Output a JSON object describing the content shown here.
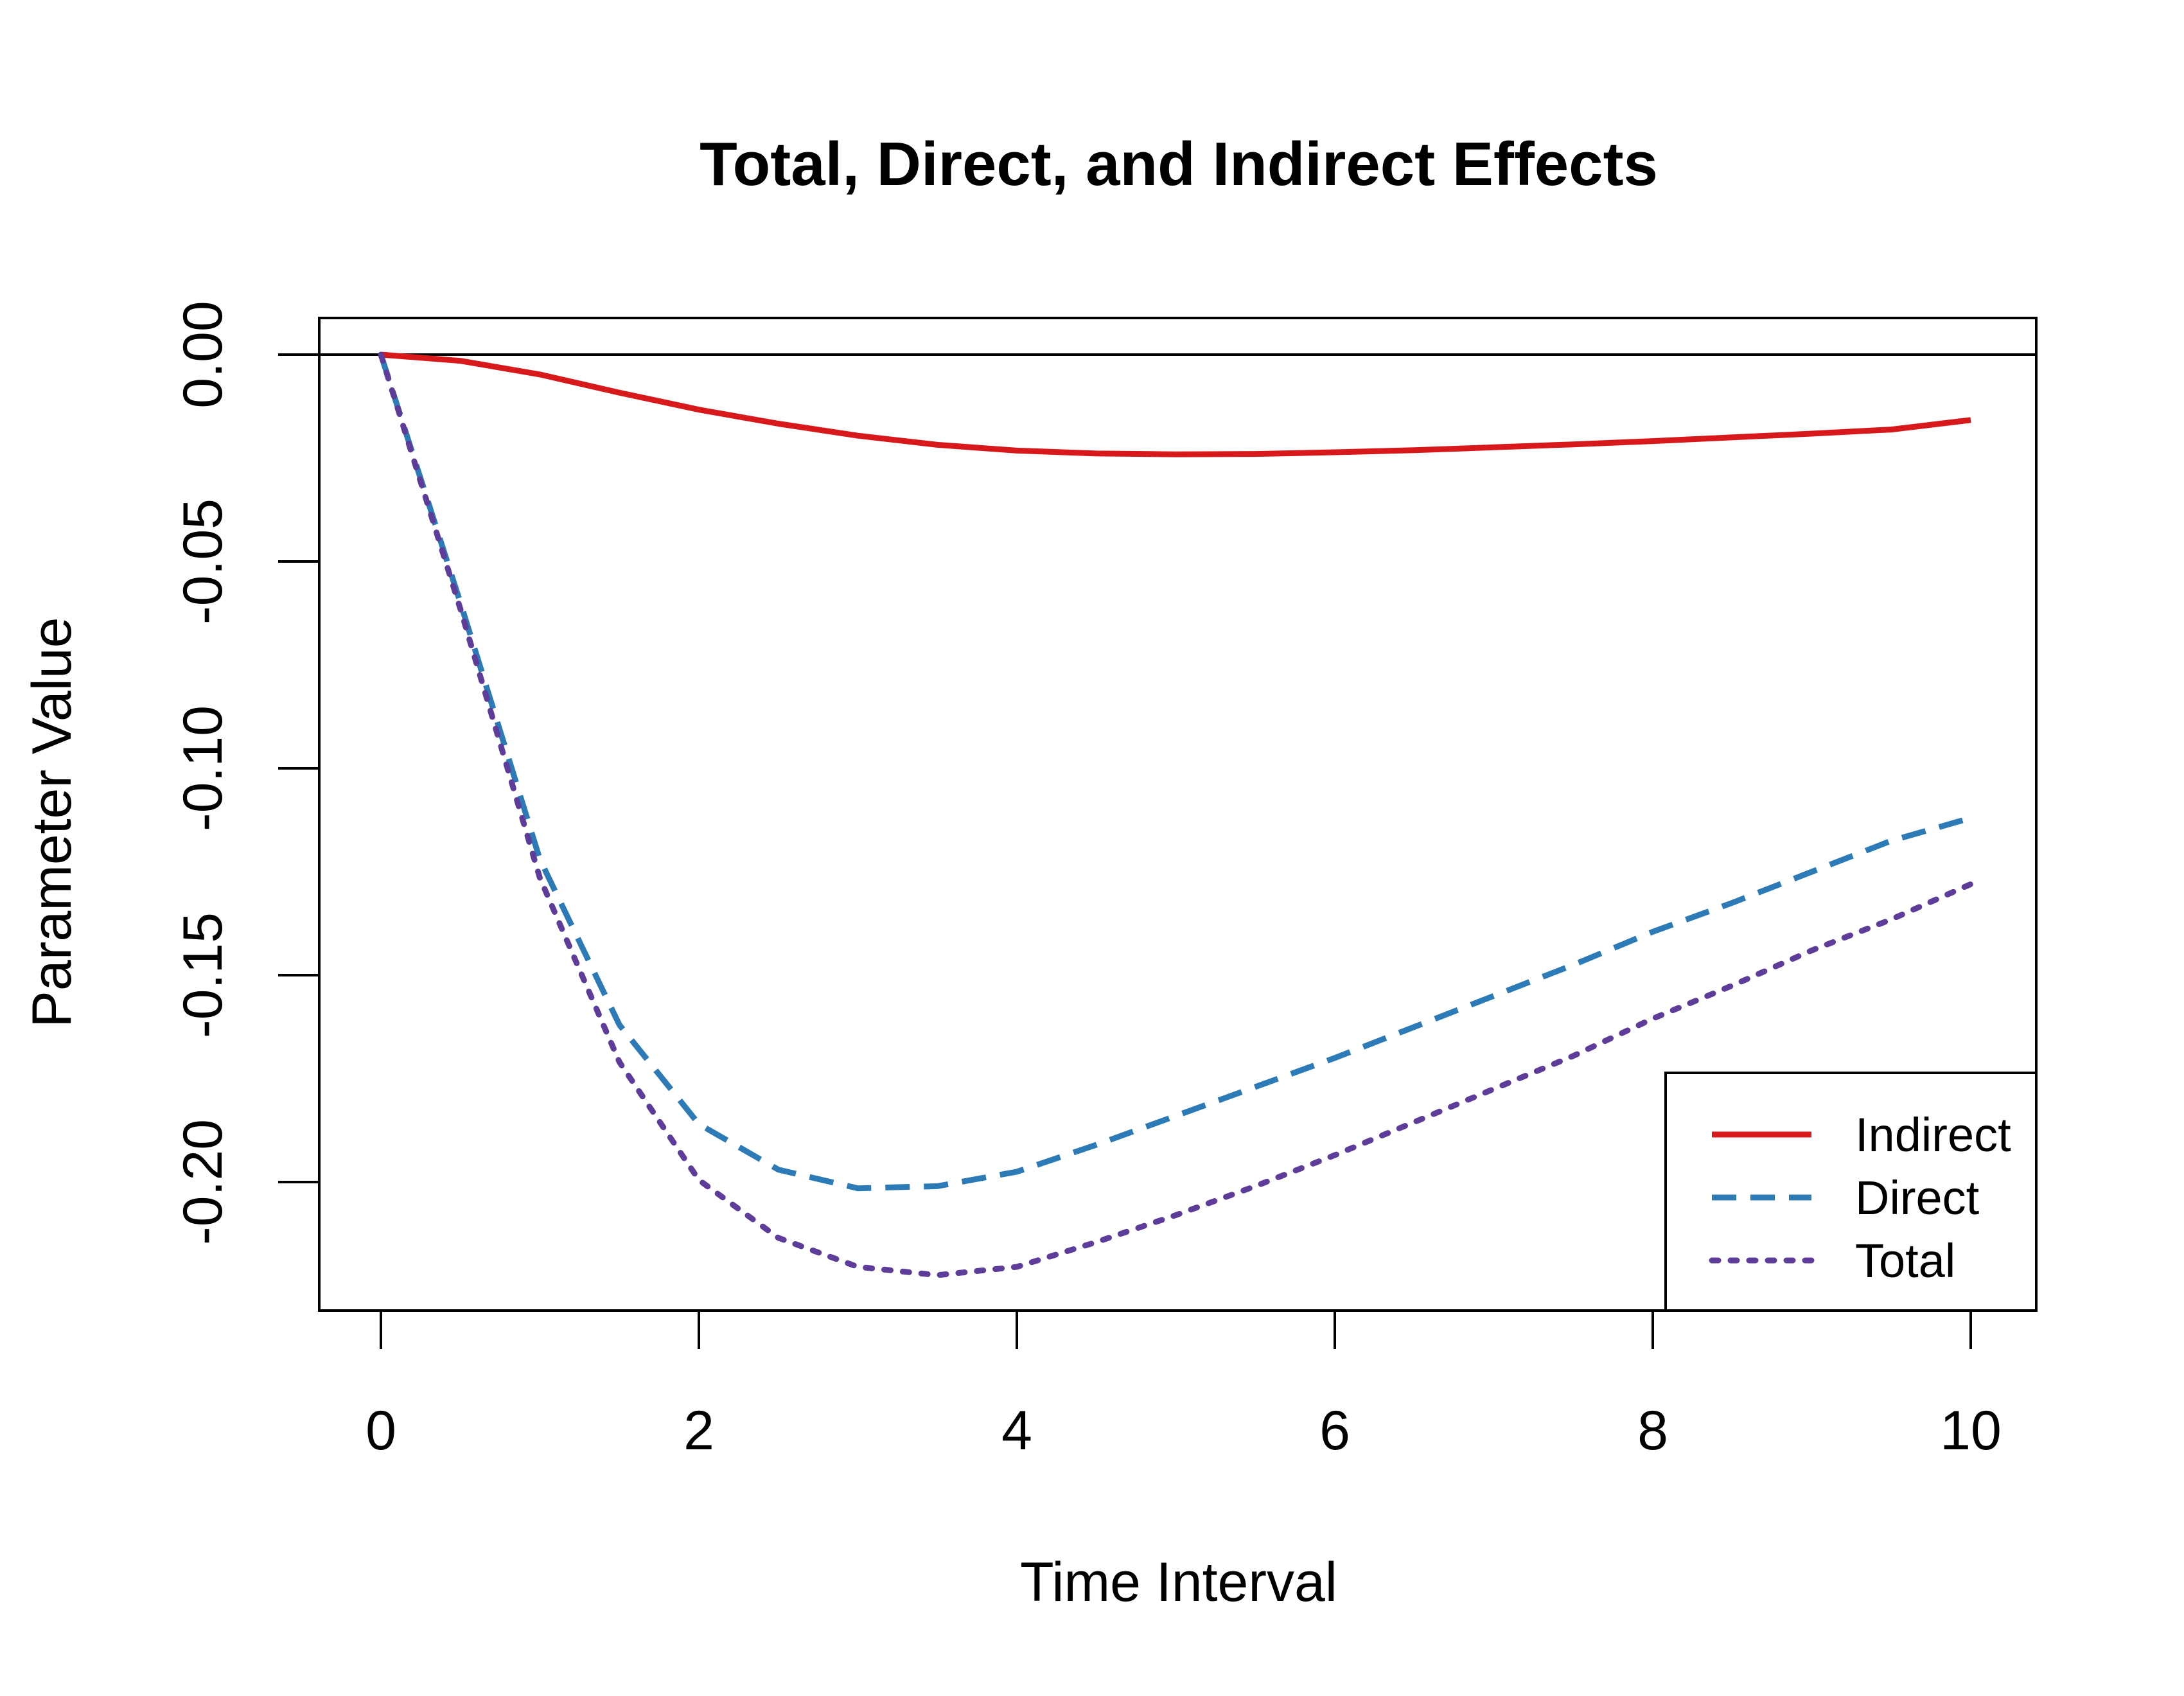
{
  "chart_data": {
    "type": "line",
    "title": "Total, Direct, and Indirect Effects",
    "xlabel": "Time Interval",
    "ylabel": "Parameter Value",
    "xlim": [
      0,
      10
    ],
    "ylim": [
      -0.23,
      0.0085
    ],
    "x_ticks": [
      0,
      2,
      4,
      6,
      8,
      10
    ],
    "x_tick_labels": [
      "0",
      "2",
      "4",
      "6",
      "8",
      "10"
    ],
    "y_ticks": [
      0,
      -0.05,
      -0.1,
      -0.15,
      -0.2
    ],
    "y_tick_labels": [
      "0.00",
      "-0.05",
      "-0.10",
      "-0.15",
      "-0.20"
    ],
    "reference_line": 0,
    "grid": false,
    "legend_position": "bottom-right",
    "x": [
      0,
      0.5,
      1,
      1.5,
      2,
      2.5,
      3,
      3.5,
      4,
      4.5,
      5,
      5.5,
      6,
      6.5,
      7,
      7.5,
      8,
      8.5,
      9,
      9.5,
      10
    ],
    "series": [
      {
        "name": "Indirect",
        "color": "#d7191c",
        "dash": "solid",
        "values": [
          0,
          -0.0015,
          -0.0048,
          -0.0092,
          -0.0133,
          -0.0167,
          -0.0196,
          -0.0218,
          -0.0232,
          -0.0239,
          -0.0241,
          -0.024,
          -0.0236,
          -0.0231,
          -0.0224,
          -0.0217,
          -0.0209,
          -0.02,
          -0.0191,
          -0.0181,
          -0.0158
        ]
      },
      {
        "name": "Direct",
        "color": "#2c7bb6",
        "dash": "dashed",
        "values": [
          0,
          -0.06,
          -0.122,
          -0.162,
          -0.186,
          -0.197,
          -0.2015,
          -0.201,
          -0.1975,
          -0.191,
          -0.184,
          -0.177,
          -0.17,
          -0.1625,
          -0.155,
          -0.1475,
          -0.1395,
          -0.1325,
          -0.125,
          -0.1175,
          -0.112
        ]
      },
      {
        "name": "Total",
        "color": "#5e3c99",
        "dash": "dotted",
        "values": [
          0,
          -0.0615,
          -0.1265,
          -0.171,
          -0.1995,
          -0.2135,
          -0.2205,
          -0.2225,
          -0.2205,
          -0.2145,
          -0.208,
          -0.201,
          -0.1935,
          -0.1855,
          -0.1775,
          -0.1695,
          -0.1605,
          -0.1525,
          -0.144,
          -0.1365,
          -0.128
        ]
      }
    ]
  }
}
